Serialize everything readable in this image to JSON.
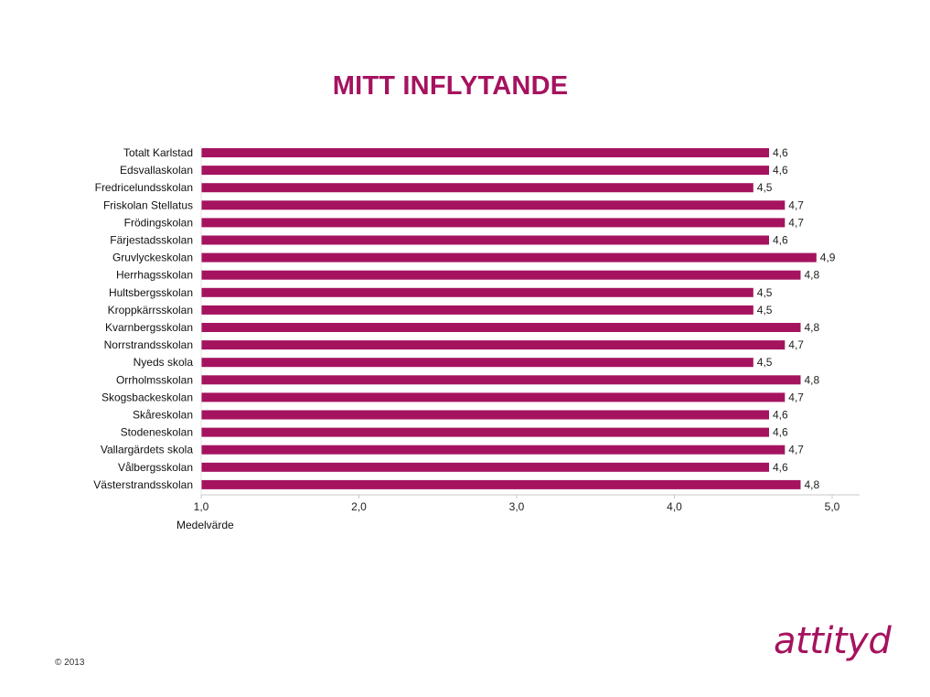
{
  "title": "MITT INFLYTANDE",
  "footer": {
    "copyright": "© 2013",
    "logo_text": "attityd"
  },
  "colors": {
    "bar": "#a5135f",
    "title": "#a5135f",
    "axis": "#c8c8c8"
  },
  "chart_data": {
    "type": "bar",
    "orientation": "horizontal",
    "categories": [
      "Totalt Karlstad",
      "Edsvallaskolan",
      "Fredricelundsskolan",
      "Friskolan Stellatus",
      "Frödingskolan",
      "Färjestadsskolan",
      "Gruvlyckeskolan",
      "Herrhagsskolan",
      "Hultsbergsskolan",
      "Kroppkärrsskolan",
      "Kvarnbergsskolan",
      "Norrstrandsskolan",
      "Nyeds skola",
      "Orrholmsskolan",
      "Skogsbackeskolan",
      "Skåreskolan",
      "Stodeneskolan",
      "Vallargärdets skola",
      "Vålbergsskolan",
      "Västerstrandsskolan"
    ],
    "values": [
      4.6,
      4.6,
      4.5,
      4.7,
      4.7,
      4.6,
      4.9,
      4.8,
      4.5,
      4.5,
      4.8,
      4.7,
      4.5,
      4.8,
      4.7,
      4.6,
      4.6,
      4.7,
      4.6,
      4.8
    ],
    "value_labels": [
      "4,6",
      "4,6",
      "4,5",
      "4,7",
      "4,7",
      "4,6",
      "4,9",
      "4,8",
      "4,5",
      "4,5",
      "4,8",
      "4,7",
      "4,5",
      "4,8",
      "4,7",
      "4,6",
      "4,6",
      "4,7",
      "4,6",
      "4,8"
    ],
    "xlim": [
      1.0,
      5.2
    ],
    "xticks": [
      1.0,
      2.0,
      3.0,
      4.0,
      5.0
    ],
    "xtick_labels": [
      "1,0",
      "2,0",
      "3,0",
      "4,0",
      "5,0"
    ],
    "xlabel": "Medelvärde",
    "grid": false,
    "legend": "none"
  }
}
